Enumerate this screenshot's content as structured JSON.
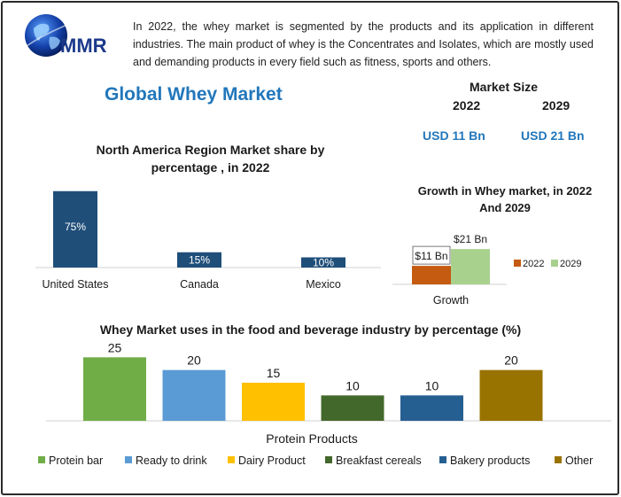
{
  "header": {
    "logo_text": "MMR",
    "intro": "In 2022, the whey market is segmented by the products and its application in different industries. The main product of whey is the Concentrates and Isolates, which are mostly used and demanding products in every field such as fitness, sports and others."
  },
  "title": "Global Whey Market",
  "market_size": {
    "title": "Market Size",
    "years": [
      "2022",
      "2029"
    ],
    "values": [
      "USD 11 Bn",
      "USD 21 Bn"
    ]
  },
  "colors": {
    "accent": "#2277bb",
    "na_bar": "#1f4e79",
    "growth_2022": "#c55a11",
    "growth_2029": "#a9d18e"
  },
  "chart_data": [
    {
      "type": "bar",
      "title": "North America Region Market share by percentage , in 2022",
      "categories": [
        "United States",
        "Canada",
        "Mexico"
      ],
      "values": [
        75,
        15,
        10
      ],
      "value_labels": [
        "75%",
        "15%",
        "10%"
      ],
      "ylim": [
        0,
        80
      ],
      "grid": false
    },
    {
      "type": "bar",
      "title": "Growth in Whey market, in 2022 And 2029",
      "categories": [
        "Growth"
      ],
      "series": [
        {
          "name": "2022",
          "values": [
            11
          ],
          "label": "$11 Bn",
          "color": "#c55a11"
        },
        {
          "name": "2029",
          "values": [
            21
          ],
          "label": "$21 Bn",
          "color": "#a9d18e"
        }
      ],
      "ylim": [
        0,
        30
      ],
      "legend": "right",
      "grid": false
    },
    {
      "type": "bar",
      "title": "Whey Market uses in the food and beverage industry by percentage (%)",
      "xlabel": "Protein Products",
      "series": [
        {
          "name": "Protein bar",
          "values": [
            25
          ],
          "color": "#70ad47"
        },
        {
          "name": "Ready to drink",
          "values": [
            20
          ],
          "color": "#5b9bd5"
        },
        {
          "name": "Dairy Product",
          "values": [
            15
          ],
          "color": "#ffc000"
        },
        {
          "name": "Breakfast cereals",
          "values": [
            10
          ],
          "color": "#43682b"
        },
        {
          "name": "Bakery products",
          "values": [
            10
          ],
          "color": "#255e91"
        },
        {
          "name": "Other",
          "values": [
            20
          ],
          "color": "#997300"
        }
      ],
      "ylim": [
        0,
        30
      ],
      "legend": "bottom",
      "grid": false
    }
  ]
}
